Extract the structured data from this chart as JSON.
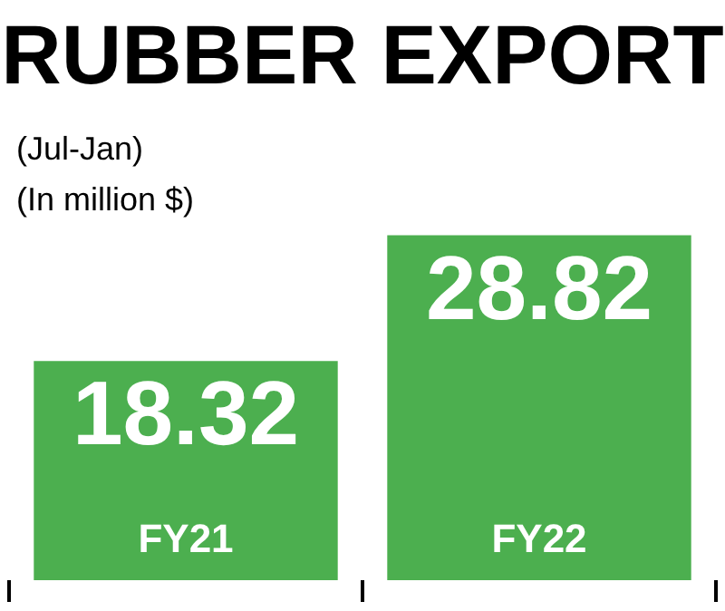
{
  "chart_data": {
    "type": "bar",
    "title": "RUBBER EXPORT",
    "subtitle": "(Jul-Jan)",
    "ylabel": "(In million $)",
    "categories": [
      "FY21",
      "FY22"
    ],
    "values": [
      18.32,
      28.82
    ],
    "color": "#4caf4f",
    "data_labels": true
  }
}
